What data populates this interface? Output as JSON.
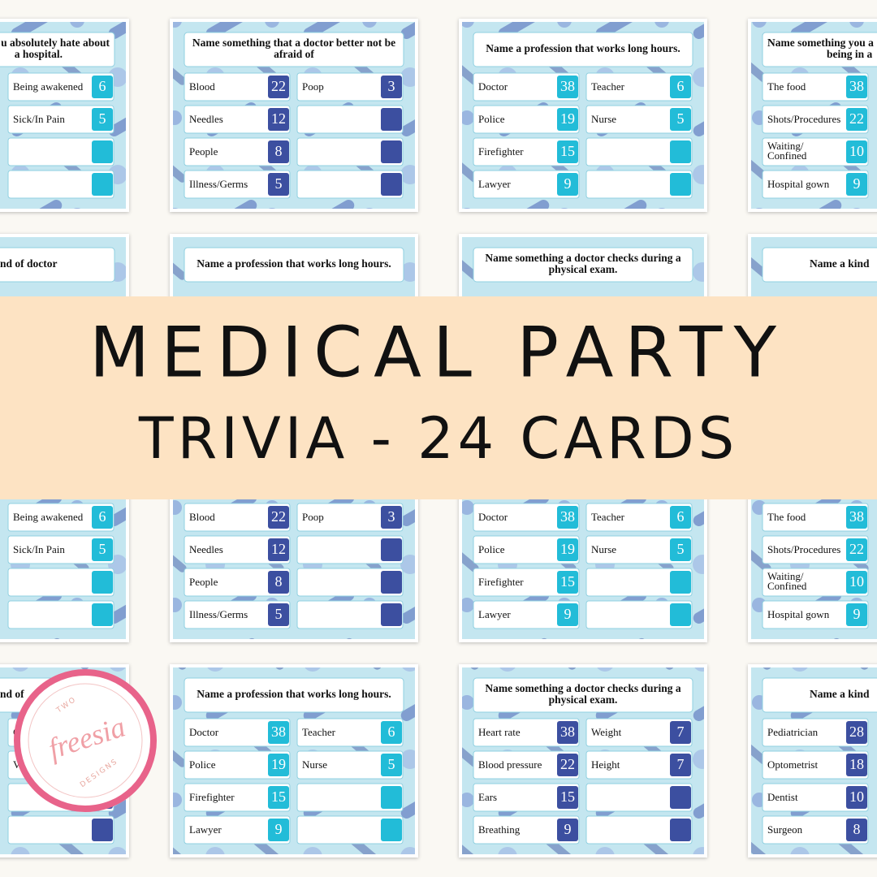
{
  "banner": {
    "line1": "MEDICAL PARTY",
    "line2": "TRIVIA - 24 CARDS"
  },
  "logo": {
    "top": "TWO",
    "name": "freesia",
    "bottom": "DESIGNS"
  },
  "cards": [
    {
      "question": [
        "u absolutely hate about",
        "a hospital."
      ],
      "color": "#22bcd8",
      "right": [
        {
          "label": "Being awakened",
          "points": 6
        },
        {
          "label": "Sick/In Pain",
          "points": 5
        },
        null,
        null
      ]
    },
    {
      "question": [
        "Name something that a doctor better not be",
        "afraid of"
      ],
      "color": "#3c4fa0",
      "left": [
        {
          "label": "Blood",
          "points": 22
        },
        {
          "label": "Needles",
          "points": 12
        },
        {
          "label": "People",
          "points": 8
        },
        {
          "label": "Illness/Germs",
          "points": 5
        }
      ],
      "right": [
        {
          "label": "Poop",
          "points": 3
        },
        null,
        null,
        null
      ]
    },
    {
      "question": [
        "Name a profession that works long hours."
      ],
      "color": "#22bcd8",
      "left": [
        {
          "label": "Doctor",
          "points": 38
        },
        {
          "label": "Police",
          "points": 19
        },
        {
          "label": "Firefighter",
          "points": 15
        },
        {
          "label": "Lawyer",
          "points": 9
        }
      ],
      "right": [
        {
          "label": "Teacher",
          "points": 6
        },
        {
          "label": "Nurse",
          "points": 5
        },
        null,
        null
      ]
    },
    {
      "question": [
        "Name something you a",
        "being in a"
      ],
      "color": "#22bcd8",
      "left": [
        {
          "label": "The food",
          "points": 38
        },
        {
          "label": "Shots/Procedures",
          "points": 22
        },
        {
          "label": [
            "Waiting/",
            "Confined"
          ],
          "points": 10
        },
        {
          "label": "Hospital gown",
          "points": 9
        }
      ]
    },
    {
      "question": [
        "nd of doctor"
      ],
      "color": "#22bcd8",
      "right": [
        {
          "label": "Being awakened",
          "points": 6
        },
        {
          "label": "Sick/In Pain",
          "points": 5
        },
        null,
        null
      ]
    },
    {
      "question": [
        "Name a profession that works long hours."
      ],
      "color": "#3c4fa0",
      "left": [
        {
          "label": "Blood",
          "points": 22
        },
        {
          "label": "Needles",
          "points": 12
        },
        {
          "label": "People",
          "points": 8
        },
        {
          "label": "Illness/Germs",
          "points": 5
        }
      ],
      "right": [
        {
          "label": "Poop",
          "points": 3
        },
        null,
        null,
        null
      ]
    },
    {
      "question": [
        "Name something a doctor checks during a",
        "physical exam."
      ],
      "color": "#22bcd8",
      "left": [
        {
          "label": "Doctor",
          "points": 38
        },
        {
          "label": "Police",
          "points": 19
        },
        {
          "label": "Firefighter",
          "points": 15
        },
        {
          "label": "Lawyer",
          "points": 9
        }
      ],
      "right": [
        {
          "label": "Teacher",
          "points": 6
        },
        {
          "label": "Nurse",
          "points": 5
        },
        null,
        null
      ]
    },
    {
      "question": [
        "Name a kind"
      ],
      "color": "#22bcd8",
      "left": [
        {
          "label": "The food",
          "points": 38
        },
        {
          "label": "Shots/Procedures",
          "points": 22
        },
        {
          "label": [
            "Waiting/",
            "Confined"
          ],
          "points": 10
        },
        {
          "label": "Hospital gown",
          "points": 9
        }
      ]
    },
    {
      "question": [
        "nd of"
      ],
      "color": "#3c4fa0",
      "right": [
        {
          "label": "C",
          "points": null
        },
        {
          "label": "V",
          "points": null
        },
        null,
        null
      ]
    },
    {
      "question": [
        "Name a profession that works long hours."
      ],
      "color": "#22bcd8",
      "left": [
        {
          "label": "Doctor",
          "points": 38
        },
        {
          "label": "Police",
          "points": 19
        },
        {
          "label": "Firefighter",
          "points": 15
        },
        {
          "label": "Lawyer",
          "points": 9
        }
      ],
      "right": [
        {
          "label": "Teacher",
          "points": 6
        },
        {
          "label": "Nurse",
          "points": 5
        },
        null,
        null
      ]
    },
    {
      "question": [
        "Name something a doctor checks during a",
        "physical exam."
      ],
      "color": "#3c4fa0",
      "left": [
        {
          "label": "Heart rate",
          "points": 38
        },
        {
          "label": "Blood pressure",
          "points": 22
        },
        {
          "label": "Ears",
          "points": 15
        },
        {
          "label": "Breathing",
          "points": 9
        }
      ],
      "right": [
        {
          "label": "Weight",
          "points": 7
        },
        {
          "label": "Height",
          "points": 7
        },
        null,
        null
      ]
    },
    {
      "question": [
        "Name a kind"
      ],
      "color": "#3c4fa0",
      "left": [
        {
          "label": "Pediatrician",
          "points": 28
        },
        {
          "label": "Optometrist",
          "points": 18
        },
        {
          "label": "Dentist",
          "points": 10
        },
        {
          "label": "Surgeon",
          "points": 8
        }
      ]
    }
  ]
}
